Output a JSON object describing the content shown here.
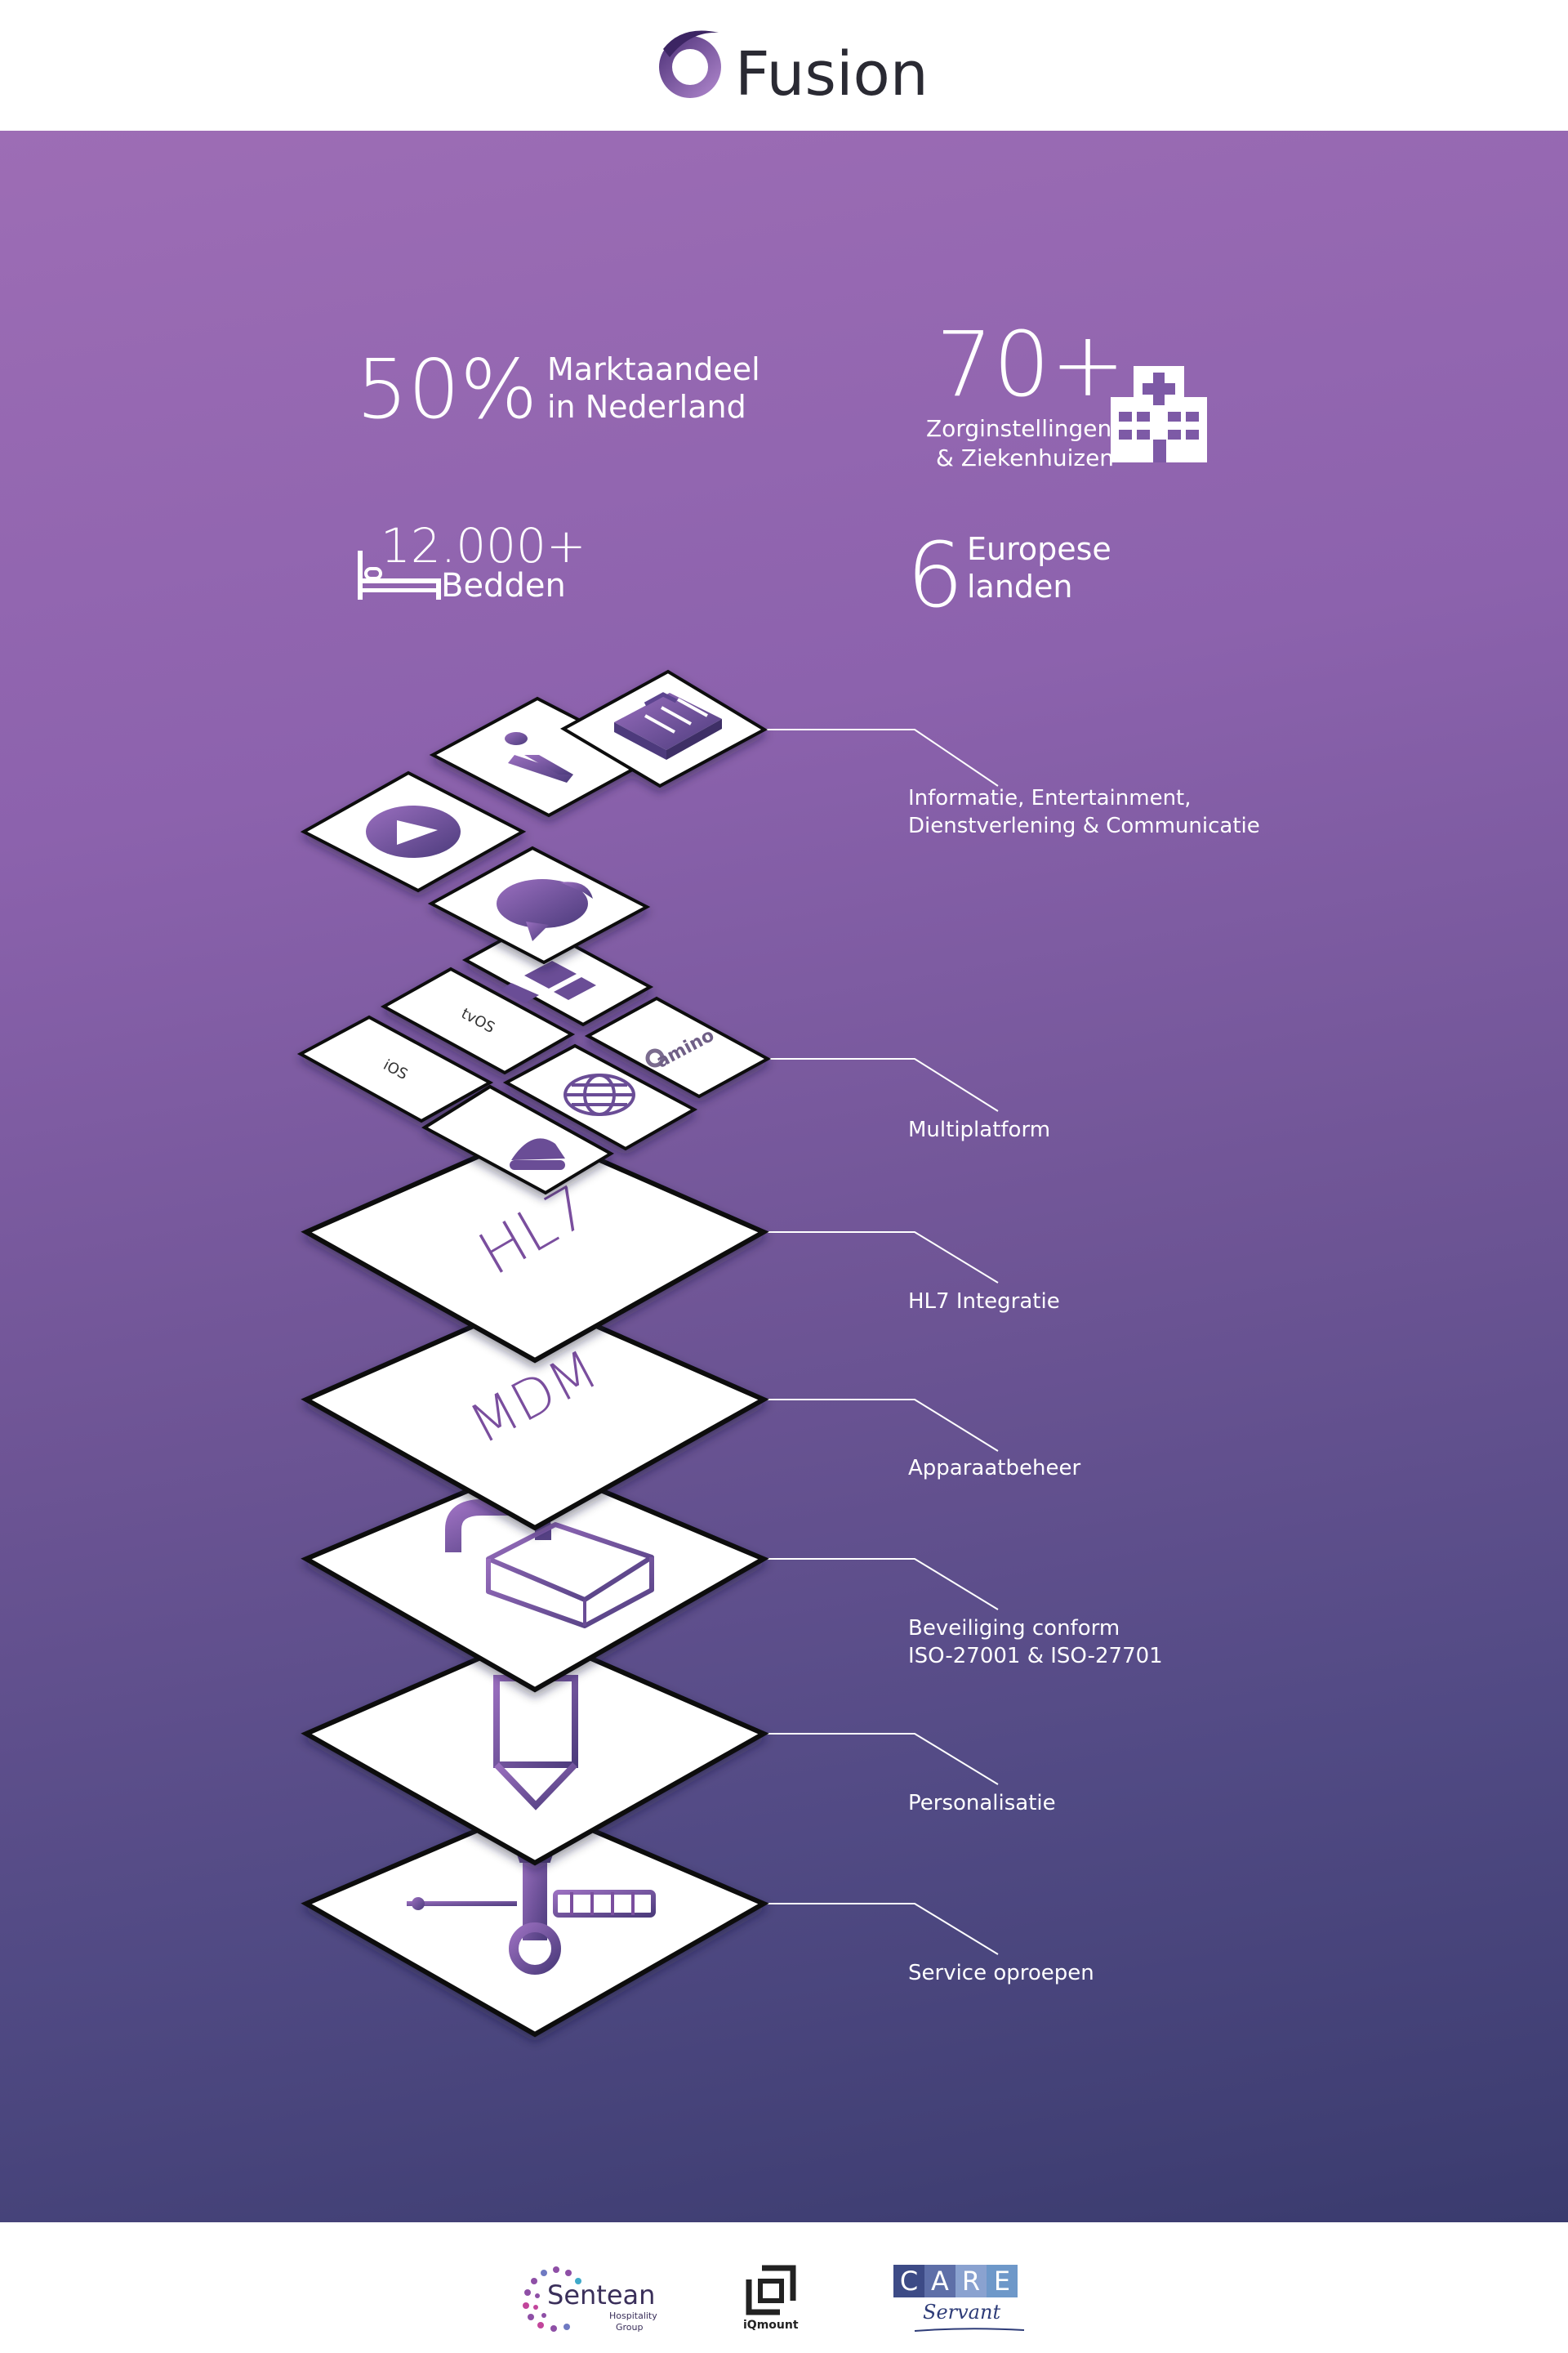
{
  "brand": {
    "name": "Fusion"
  },
  "stats": {
    "market_value": "50%",
    "market_line1": "Marktaandeel",
    "market_line2": "in Nederland",
    "inst_value": "70+",
    "inst_line1": "Zorginstellingen",
    "inst_line2": "& Ziekenhuizen",
    "beds_value": "12.000+",
    "beds_label": "Bedden",
    "countries_value": "6",
    "countries_line1": "Europese",
    "countries_line2": "landen"
  },
  "layers": [
    {
      "line1": "Informatie, Entertainment,",
      "line2": "Dienstverlening & Communicatie"
    },
    {
      "line1": "Multiplatform",
      "line2": ""
    },
    {
      "line1": "HL7 Integratie",
      "line2": ""
    },
    {
      "line1": "Apparaatbeheer",
      "line2": ""
    },
    {
      "line1": "Beveiliging conform",
      "line2": "ISO-27001 & ISO-27701"
    },
    {
      "line1": "Personalisatie",
      "line2": ""
    },
    {
      "line1": "Service oproepen",
      "line2": ""
    }
  ],
  "tile_text": {
    "hl7": "HL7",
    "mdm": "MDM",
    "ios": "iOS",
    "tvos": "tvOS",
    "amino": "amino"
  },
  "footer": {
    "sentean_name": "Sentean",
    "sentean_sub1": "Hospitality",
    "sentean_sub2": "Group",
    "iqmount": "iQmount",
    "care_c": "C",
    "care_a": "A",
    "care_r": "R",
    "care_e": "E",
    "care_servant": "Servant"
  },
  "colors": {
    "purple": "#7a4e9e",
    "gradient_top": "#9d6db5",
    "gradient_bottom": "#3a3b6e"
  }
}
